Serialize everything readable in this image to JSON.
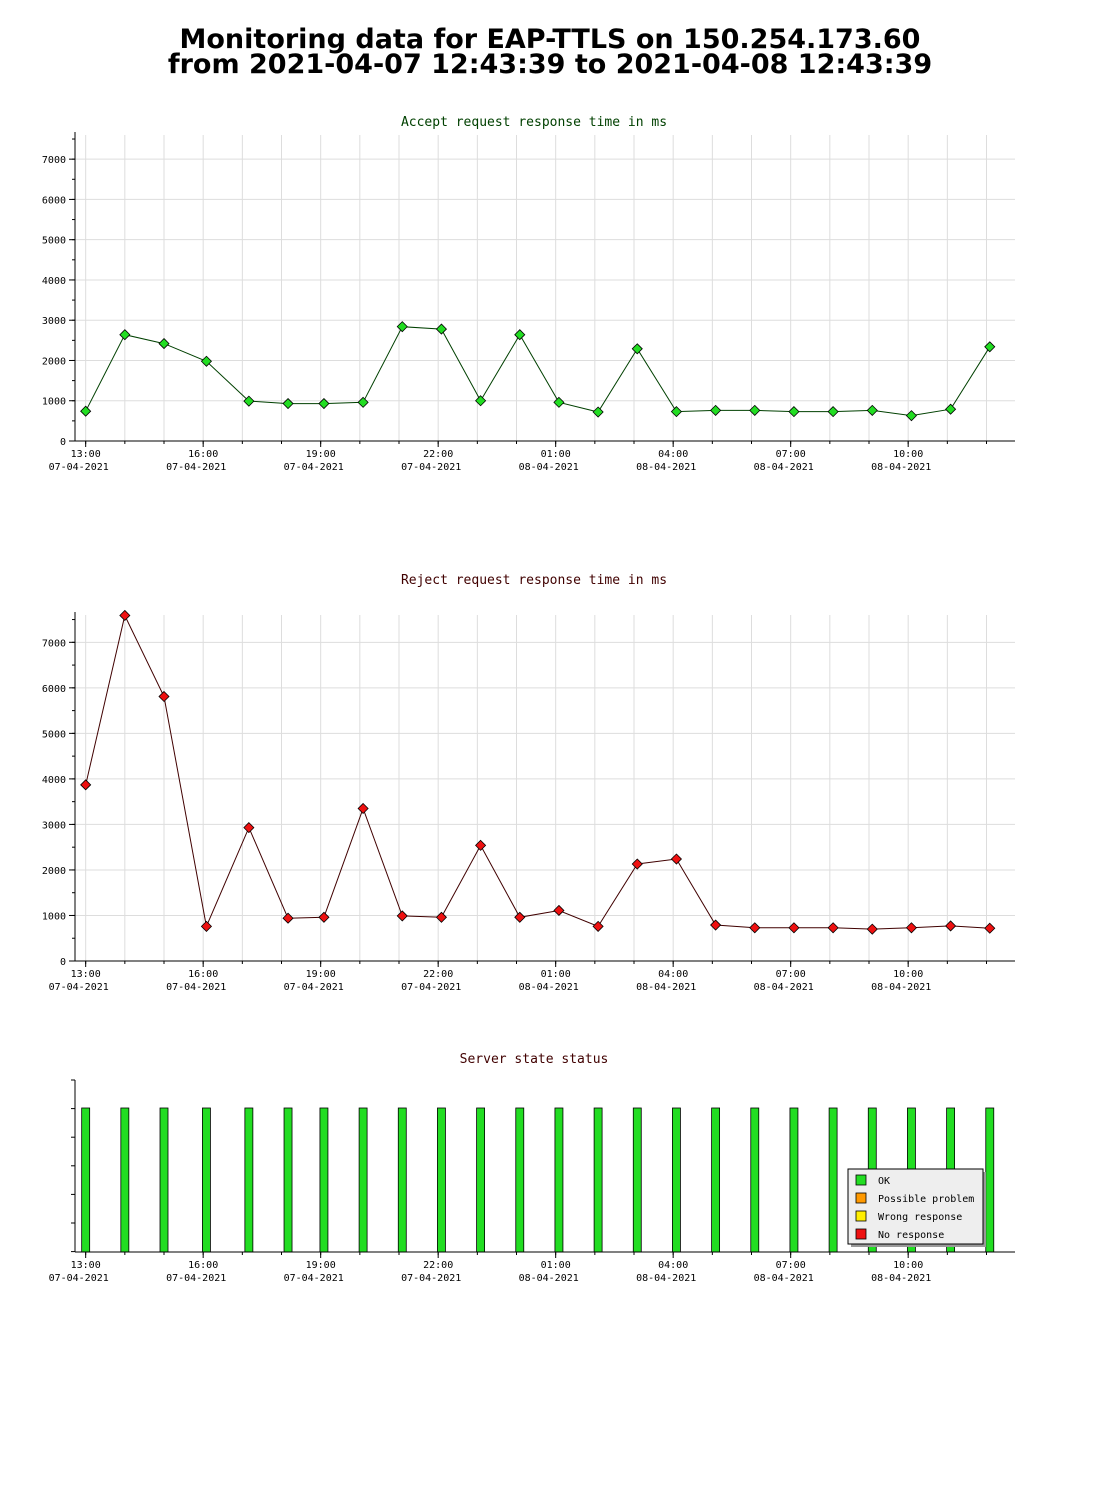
{
  "page": {
    "title_line1": "Monitoring data for EAP-TTLS on 150.254.173.60",
    "title_line2": "from 2021-04-07 12:43:39 to 2021-04-08 12:43:39"
  },
  "colors": {
    "accept_line": "#004000",
    "accept_marker": "#22dd22",
    "reject_line": "#400000",
    "reject_marker": "#ee1111",
    "ok": "#22dd22",
    "possible_problem": "#ff9900",
    "wrong_response": "#ffee00",
    "no_response": "#ee1111",
    "accept_title": "#004000",
    "reject_title": "#400000",
    "status_title": "#400000"
  },
  "chart_data": [
    {
      "id": "accept",
      "type": "line",
      "title": "Accept request response time in ms",
      "xlabel": "",
      "ylabel": "",
      "x_ticks": [
        {
          "time": "13:00",
          "date": "07-04-2021"
        },
        {
          "time": "16:00",
          "date": "07-04-2021"
        },
        {
          "time": "19:00",
          "date": "07-04-2021"
        },
        {
          "time": "22:00",
          "date": "07-04-2021"
        },
        {
          "time": "01:00",
          "date": "08-04-2021"
        },
        {
          "time": "04:00",
          "date": "08-04-2021"
        },
        {
          "time": "07:00",
          "date": "08-04-2021"
        },
        {
          "time": "10:00",
          "date": "08-04-2021"
        }
      ],
      "x": [
        "2021-04-07 13:00",
        "2021-04-07 14:00",
        "2021-04-07 15:00",
        "2021-04-07 16:05",
        "2021-04-07 17:10",
        "2021-04-07 18:10",
        "2021-04-07 19:05",
        "2021-04-07 20:05",
        "2021-04-07 21:05",
        "2021-04-07 22:05",
        "2021-04-07 23:05",
        "2021-04-08 00:05",
        "2021-04-08 01:05",
        "2021-04-08 02:05",
        "2021-04-08 03:05",
        "2021-04-08 04:05",
        "2021-04-08 05:05",
        "2021-04-08 06:05",
        "2021-04-08 07:05",
        "2021-04-08 08:05",
        "2021-04-08 09:05",
        "2021-04-08 10:05",
        "2021-04-08 11:05",
        "2021-04-08 12:05"
      ],
      "values": [
        740,
        2640,
        2420,
        1980,
        990,
        930,
        930,
        960,
        2840,
        2780,
        1000,
        2640,
        960,
        720,
        2290,
        730,
        760,
        760,
        730,
        730,
        760,
        630,
        790,
        2340
      ],
      "y_ticks": [
        0,
        1000,
        2000,
        3000,
        4000,
        5000,
        6000,
        7000
      ],
      "ylim": [
        0,
        7000
      ],
      "grid": true,
      "legend": "none"
    },
    {
      "id": "reject",
      "type": "line",
      "title": "Reject request response time in ms",
      "xlabel": "",
      "ylabel": "",
      "x_ticks": [
        {
          "time": "13:00",
          "date": "07-04-2021"
        },
        {
          "time": "16:00",
          "date": "07-04-2021"
        },
        {
          "time": "19:00",
          "date": "07-04-2021"
        },
        {
          "time": "22:00",
          "date": "07-04-2021"
        },
        {
          "time": "01:00",
          "date": "08-04-2021"
        },
        {
          "time": "04:00",
          "date": "08-04-2021"
        },
        {
          "time": "07:00",
          "date": "08-04-2021"
        },
        {
          "time": "10:00",
          "date": "08-04-2021"
        }
      ],
      "x": [
        "2021-04-07 13:00",
        "2021-04-07 14:00",
        "2021-04-07 15:00",
        "2021-04-07 16:05",
        "2021-04-07 17:10",
        "2021-04-07 18:10",
        "2021-04-07 19:05",
        "2021-04-07 20:05",
        "2021-04-07 21:05",
        "2021-04-07 22:05",
        "2021-04-07 23:05",
        "2021-04-08 00:05",
        "2021-04-08 01:05",
        "2021-04-08 02:05",
        "2021-04-08 03:05",
        "2021-04-08 04:05",
        "2021-04-08 05:05",
        "2021-04-08 06:05",
        "2021-04-08 07:05",
        "2021-04-08 08:05",
        "2021-04-08 09:05",
        "2021-04-08 10:05",
        "2021-04-08 11:05",
        "2021-04-08 12:05"
      ],
      "values": [
        3870,
        7590,
        5810,
        760,
        2930,
        940,
        960,
        3350,
        990,
        960,
        2540,
        960,
        1110,
        760,
        2130,
        2240,
        790,
        730,
        730,
        730,
        700,
        730,
        770,
        720
      ],
      "y_ticks": [
        0,
        1000,
        2000,
        3000,
        4000,
        5000,
        6000,
        7000
      ],
      "ylim": [
        0,
        7600
      ],
      "grid": true,
      "legend": "none"
    },
    {
      "id": "status",
      "type": "bar",
      "title": "Server state status",
      "xlabel": "",
      "ylabel": "",
      "x_ticks": [
        {
          "time": "13:00",
          "date": "07-04-2021"
        },
        {
          "time": "16:00",
          "date": "07-04-2021"
        },
        {
          "time": "19:00",
          "date": "07-04-2021"
        },
        {
          "time": "22:00",
          "date": "07-04-2021"
        },
        {
          "time": "01:00",
          "date": "08-04-2021"
        },
        {
          "time": "04:00",
          "date": "08-04-2021"
        },
        {
          "time": "07:00",
          "date": "08-04-2021"
        },
        {
          "time": "10:00",
          "date": "08-04-2021"
        }
      ],
      "x": [
        "2021-04-07 13:00",
        "2021-04-07 14:00",
        "2021-04-07 15:00",
        "2021-04-07 16:05",
        "2021-04-07 17:10",
        "2021-04-07 18:10",
        "2021-04-07 19:05",
        "2021-04-07 20:05",
        "2021-04-07 21:05",
        "2021-04-07 22:05",
        "2021-04-07 23:05",
        "2021-04-08 00:05",
        "2021-04-08 01:05",
        "2021-04-08 02:05",
        "2021-04-08 03:05",
        "2021-04-08 04:05",
        "2021-04-08 05:05",
        "2021-04-08 06:05",
        "2021-04-08 07:05",
        "2021-04-08 08:05",
        "2021-04-08 09:05",
        "2021-04-08 10:05",
        "2021-04-08 11:05",
        "2021-04-08 12:05"
      ],
      "states": [
        "OK",
        "OK",
        "OK",
        "OK",
        "OK",
        "OK",
        "OK",
        "OK",
        "OK",
        "OK",
        "OK",
        "OK",
        "OK",
        "OK",
        "OK",
        "OK",
        "OK",
        "OK",
        "OK",
        "OK",
        "OK",
        "OK",
        "OK",
        "OK"
      ],
      "grid": false,
      "legend_position": "bottom-right",
      "legend": [
        {
          "label": "OK",
          "color": "#22dd22"
        },
        {
          "label": "Possible problem",
          "color": "#ff9900"
        },
        {
          "label": "Wrong response",
          "color": "#ffee00"
        },
        {
          "label": "No response",
          "color": "#ee1111"
        }
      ]
    }
  ]
}
